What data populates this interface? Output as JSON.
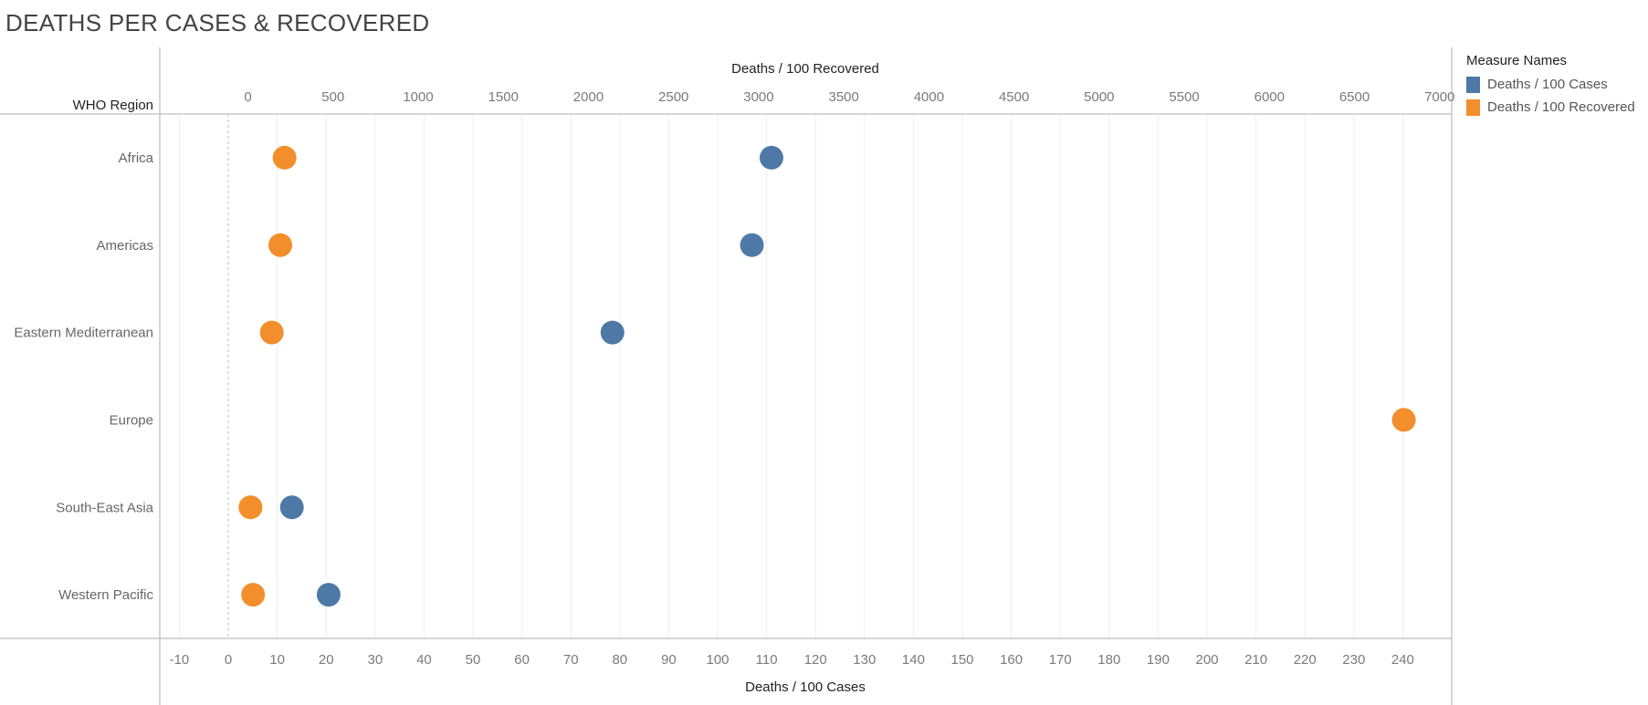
{
  "page": {
    "title": "DEATHS PER CASES & RECOVERED"
  },
  "legend": {
    "title": "Measure Names",
    "items": [
      {
        "label": "Deaths / 100 Cases",
        "color": "#4e79a7"
      },
      {
        "label": "Deaths / 100 Recovered",
        "color": "#f28e2b"
      }
    ]
  },
  "chart_data": {
    "type": "scatter",
    "title": "DEATHS PER CASES & RECOVERED",
    "row_header": "WHO Region",
    "categories": [
      "Africa",
      "Americas",
      "Eastern Mediterranean",
      "Europe",
      "South-East Asia",
      "Western Pacific"
    ],
    "top_axis": {
      "label": "Deaths / 100 Recovered",
      "range": [
        -518,
        7071
      ],
      "ticks": [
        0,
        500,
        1000,
        1500,
        2000,
        2500,
        3000,
        3500,
        4000,
        4500,
        5000,
        5500,
        6000,
        6500,
        7000
      ]
    },
    "bottom_axis": {
      "label": "Deaths / 100 Cases",
      "range": [
        -14,
        250
      ],
      "ticks": [
        -10,
        0,
        10,
        20,
        30,
        40,
        50,
        60,
        70,
        80,
        90,
        100,
        110,
        120,
        130,
        140,
        150,
        160,
        170,
        180,
        190,
        200,
        210,
        220,
        230,
        240
      ]
    },
    "series": [
      {
        "name": "Deaths / 100 Cases",
        "color": "#4e79a7",
        "axis": "bottom",
        "values": [
          111,
          107,
          78.5,
          null,
          13,
          20.5
        ]
      },
      {
        "name": "Deaths / 100 Recovered",
        "color": "#f28e2b",
        "axis": "top",
        "values": [
          215,
          190,
          140,
          6790,
          15,
          30
        ]
      }
    ]
  }
}
